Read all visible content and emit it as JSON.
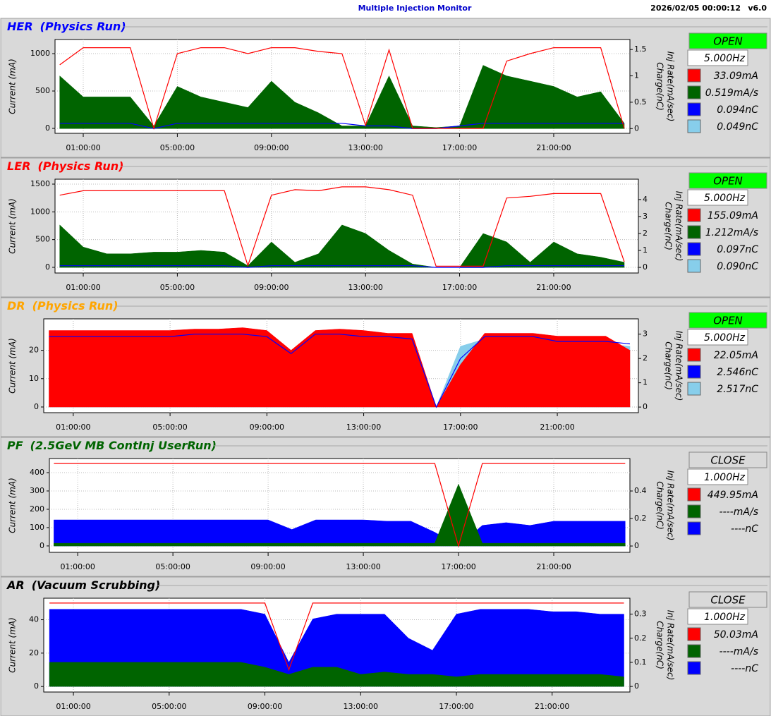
{
  "header": {
    "title": "Multiple Injection Monitor",
    "timestamp": "2026/02/05 00:00:12",
    "version": "v6.0"
  },
  "panels": [
    {
      "name": "HER",
      "mode": "(Physics Run)",
      "name_color": "#0000ff",
      "status": "OPEN",
      "status_color": "#00ff00",
      "rate": "5.000Hz",
      "readouts": [
        {
          "text": "33.09mA",
          "color": "#ff0000"
        },
        {
          "text": "0.519mA/s",
          "color": "#006400"
        },
        {
          "text": "0.094nC",
          "color": "#0000ff"
        },
        {
          "text": "0.049nC",
          "color": "#87ceeb"
        }
      ]
    },
    {
      "name": "LER",
      "mode": "(Physics Run)",
      "name_color": "#ff0000",
      "status": "OPEN",
      "status_color": "#00ff00",
      "rate": "5.000Hz",
      "readouts": [
        {
          "text": "155.09mA",
          "color": "#ff0000"
        },
        {
          "text": "1.212mA/s",
          "color": "#006400"
        },
        {
          "text": "0.097nC",
          "color": "#0000ff"
        },
        {
          "text": "0.090nC",
          "color": "#87ceeb"
        }
      ]
    },
    {
      "name": "DR",
      "mode": "(Physics Run)",
      "name_color": "#ffa500",
      "status": "OPEN",
      "status_color": "#00ff00",
      "rate": "5.000Hz",
      "readouts": [
        {
          "text": "22.05mA",
          "color": "#ff0000"
        },
        {
          "text": "2.546nC",
          "color": "#0000ff"
        },
        {
          "text": "2.517nC",
          "color": "#87ceeb"
        }
      ]
    },
    {
      "name": "PF",
      "mode": "(2.5GeV MB ContInj UserRun)",
      "name_color": "#006400",
      "status": "CLOSE",
      "status_color": "#d9d9d9",
      "rate": "1.000Hz",
      "readouts": [
        {
          "text": "449.95mA",
          "color": "#ff0000"
        },
        {
          "text": "----mA/s",
          "color": "#006400"
        },
        {
          "text": "----nC",
          "color": "#0000ff"
        }
      ]
    },
    {
      "name": "AR",
      "mode": "(Vacuum Scrubbing)",
      "name_color": "#000000",
      "status": "CLOSE",
      "status_color": "#d9d9d9",
      "rate": "1.000Hz",
      "readouts": [
        {
          "text": "50.03mA",
          "color": "#ff0000"
        },
        {
          "text": "----mA/s",
          "color": "#006400"
        },
        {
          "text": "----nC",
          "color": "#0000ff"
        }
      ]
    }
  ],
  "chart_data": [
    {
      "type": "line",
      "y_label": "Current (mA)",
      "y2_label": [
        "Charge(nC)",
        "Inj Rate(mA/sec)"
      ],
      "grid": true,
      "x": [
        0,
        1,
        2,
        3,
        4,
        5,
        6,
        7,
        8,
        9,
        10,
        11,
        12,
        13,
        14,
        15,
        16,
        17,
        18,
        19,
        20,
        21,
        22,
        23,
        24
      ],
      "xlim": [
        -0.2,
        24.24
      ],
      "xticks": [
        {
          "value": 1,
          "label": "01:00:00"
        },
        {
          "value": 5,
          "label": "05:00:00"
        },
        {
          "value": 9,
          "label": "09:00:00"
        },
        {
          "value": 13,
          "label": "13:00:00"
        },
        {
          "value": 17,
          "label": "17:00:00"
        },
        {
          "value": 21,
          "label": "21:00:00"
        }
      ],
      "ylim": [
        -66,
        1189
      ],
      "yticks": [
        0,
        500,
        1000
      ],
      "y2lim": [
        -0.09,
        1.69
      ],
      "y2ticks": [
        0,
        0.5,
        1,
        1.5
      ],
      "series": [
        {
          "color": "#006400",
          "style": "area",
          "axis": "y2",
          "values": [
            1.0,
            0.6,
            0.6,
            0.6,
            0.05,
            0.8,
            0.6,
            0.5,
            0.4,
            0.9,
            0.5,
            0.3,
            0.05,
            0.05,
            1.0,
            0.05,
            0.02,
            0.05,
            1.2,
            1.0,
            0.9,
            0.8,
            0.6,
            0.7,
            0.1
          ]
        },
        {
          "color": "#0000ff",
          "style": "line",
          "axis": "y2",
          "values": [
            0.1,
            0.1,
            0.1,
            0.1,
            0,
            0.1,
            0.1,
            0.1,
            0.1,
            0.1,
            0.1,
            0.1,
            0.1,
            0.05,
            0.05,
            0,
            0,
            0.05,
            0.1,
            0.1,
            0.1,
            0.1,
            0.1,
            0.1,
            0.1
          ]
        },
        {
          "color": "#ff0000",
          "style": "line",
          "axis": "y",
          "values": [
            850,
            1080,
            1080,
            1080,
            0,
            1000,
            1080,
            1080,
            1000,
            1080,
            1080,
            1030,
            1000,
            40,
            1050,
            0,
            0,
            0,
            0,
            900,
            1000,
            1080,
            1080,
            1080,
            0
          ]
        }
      ]
    },
    {
      "type": "line",
      "y_label": "Current (mA)",
      "y2_label": [
        "Charge(nC)",
        "Inj Rate(mA/sec)"
      ],
      "grid": true,
      "x": [
        0,
        1,
        2,
        3,
        4,
        5,
        6,
        7,
        8,
        9,
        10,
        11,
        12,
        13,
        14,
        15,
        16,
        17,
        18,
        19,
        20,
        21,
        22,
        23,
        24
      ],
      "xlim": [
        -0.2,
        24.6
      ],
      "xticks": [
        {
          "value": 1,
          "label": "01:00:00"
        },
        {
          "value": 5,
          "label": "05:00:00"
        },
        {
          "value": 9,
          "label": "09:00:00"
        },
        {
          "value": 13,
          "label": "13:00:00"
        },
        {
          "value": 17,
          "label": "17:00:00"
        },
        {
          "value": 21,
          "label": "21:00:00"
        }
      ],
      "ylim": [
        -102,
        1589
      ],
      "yticks": [
        0,
        500,
        1000,
        1500
      ],
      "y2lim": [
        -0.33,
        5.2
      ],
      "y2ticks": [
        0,
        1,
        2,
        3,
        4
      ],
      "series": [
        {
          "color": "#006400",
          "style": "area",
          "axis": "y2",
          "values": [
            2.5,
            1.2,
            0.8,
            0.8,
            0.9,
            0.9,
            1.0,
            0.9,
            0.1,
            1.5,
            0.3,
            0.8,
            2.5,
            2.0,
            1.0,
            0.2,
            0,
            0,
            2.0,
            1.5,
            0.3,
            1.5,
            0.8,
            0.6,
            0.3
          ]
        },
        {
          "color": "#0000ff",
          "style": "line",
          "axis": "y2",
          "values": [
            0.1,
            0.1,
            0.1,
            0.1,
            0.1,
            0.1,
            0.1,
            0.1,
            0,
            0.1,
            0.1,
            0.1,
            0.1,
            0.1,
            0.1,
            0.1,
            0,
            0,
            0,
            0.1,
            0.1,
            0.1,
            0.1,
            0.1,
            0.1
          ]
        },
        {
          "color": "#ff0000",
          "style": "line",
          "axis": "y",
          "values": [
            1300,
            1380,
            1380,
            1380,
            1380,
            1380,
            1380,
            1380,
            30,
            1300,
            1400,
            1380,
            1450,
            1450,
            1400,
            1300,
            20,
            20,
            20,
            1250,
            1280,
            1330,
            1330,
            1330,
            100
          ]
        }
      ]
    },
    {
      "type": "line",
      "y_label": "Current (mA)",
      "y2_label": [
        "Charge(nC)",
        "Inj Rate(mA/sec)"
      ],
      "grid": true,
      "x": [
        0,
        1,
        2,
        3,
        4,
        5,
        6,
        7,
        8,
        9,
        10,
        11,
        12,
        13,
        14,
        15,
        16,
        17,
        18,
        19,
        20,
        21,
        22,
        23,
        24
      ],
      "xlim": [
        -0.22,
        24.35
      ],
      "xticks": [
        {
          "value": 1,
          "label": "01:00:00"
        },
        {
          "value": 5,
          "label": "05:00:00"
        },
        {
          "value": 9,
          "label": "09:00:00"
        },
        {
          "value": 13,
          "label": "13:00:00"
        },
        {
          "value": 17,
          "label": "17:00:00"
        },
        {
          "value": 21,
          "label": "21:00:00"
        }
      ],
      "ylim": [
        -2,
        31.1
      ],
      "yticks": [
        0,
        10,
        20
      ],
      "y2lim": [
        -0.23,
        3.63
      ],
      "y2ticks": [
        0,
        1,
        2,
        3
      ],
      "series": [
        {
          "color": "#87ceeb",
          "style": "area",
          "axis": "y2",
          "values": [
            2.9,
            2.9,
            2.9,
            2.9,
            2.9,
            2.9,
            2.9,
            2.9,
            3.0,
            2.9,
            2.0,
            2.9,
            2.9,
            2.9,
            2.8,
            2.8,
            0,
            2.5,
            2.8,
            2.8,
            2.7,
            2.7,
            2.6,
            2.6,
            2.5
          ]
        },
        {
          "color": "#ff0000",
          "style": "area",
          "axis": "y",
          "values": [
            27,
            27,
            27,
            27,
            27,
            27,
            27.5,
            27.5,
            28,
            27,
            20,
            27,
            27.5,
            27,
            26,
            26,
            0,
            15,
            26,
            26,
            26,
            25,
            25,
            25,
            20
          ]
        },
        {
          "color": "#0000ff",
          "style": "line",
          "axis": "y2",
          "values": [
            2.9,
            2.9,
            2.9,
            2.9,
            2.9,
            2.9,
            3.0,
            3.0,
            3.0,
            2.9,
            2.2,
            3.0,
            3.0,
            2.9,
            2.9,
            2.8,
            0,
            2.0,
            2.9,
            2.9,
            2.9,
            2.7,
            2.7,
            2.7,
            2.6
          ]
        }
      ]
    },
    {
      "type": "line",
      "y_label": "Current (mA)",
      "y2_label": [
        "Charge(nC)",
        "Inj Rate(mA/sec)"
      ],
      "grid": true,
      "x": [
        0,
        1,
        2,
        3,
        4,
        5,
        6,
        7,
        8,
        9,
        10,
        11,
        12,
        13,
        14,
        15,
        16,
        17,
        18,
        19,
        20,
        21,
        22,
        23,
        24
      ],
      "xlim": [
        -0.19,
        24.2
      ],
      "xticks": [
        {
          "value": 1,
          "label": "01:00:00"
        },
        {
          "value": 5,
          "label": "05:00:00"
        },
        {
          "value": 9,
          "label": "09:00:00"
        },
        {
          "value": 13,
          "label": "13:00:00"
        },
        {
          "value": 17,
          "label": "17:00:00"
        },
        {
          "value": 21,
          "label": "21:00:00"
        }
      ],
      "ylim": [
        -35,
        477
      ],
      "yticks": [
        0,
        100,
        200,
        300,
        400
      ],
      "y2lim": [
        -0.046,
        0.636
      ],
      "y2ticks": [
        0,
        0.2,
        0.4
      ],
      "series": [
        {
          "color": "#0000ff",
          "style": "area",
          "axis": "y2",
          "values": [
            0.19,
            0.19,
            0.19,
            0.19,
            0.19,
            0.19,
            0.19,
            0.19,
            0.19,
            0.19,
            0.12,
            0.19,
            0.19,
            0.19,
            0.18,
            0.18,
            0.1,
            0,
            0.15,
            0.17,
            0.15,
            0.18,
            0.18,
            0.18,
            0.18
          ]
        },
        {
          "color": "#006400",
          "style": "area",
          "axis": "y2",
          "values": [
            0.02,
            0.02,
            0.02,
            0.02,
            0.02,
            0.02,
            0.02,
            0.02,
            0.02,
            0.02,
            0.02,
            0.02,
            0.02,
            0.02,
            0.02,
            0.02,
            0.02,
            0.45,
            0.02,
            0.02,
            0.02,
            0.02,
            0.02,
            0.02,
            0.02
          ]
        },
        {
          "color": "#ff0000",
          "style": "line",
          "axis": "y",
          "values": [
            450,
            450,
            450,
            450,
            450,
            450,
            450,
            450,
            450,
            450,
            450,
            450,
            450,
            450,
            450,
            450,
            450,
            0,
            450,
            450,
            450,
            450,
            450,
            450,
            450
          ]
        }
      ]
    },
    {
      "type": "line",
      "y_label": "Current (mA)",
      "y2_label": [
        "Charge(nC)",
        "Inj Rate(mA/sec)"
      ],
      "grid": true,
      "x": [
        0,
        1,
        2,
        3,
        4,
        5,
        6,
        7,
        8,
        9,
        10,
        11,
        12,
        13,
        14,
        15,
        16,
        17,
        18,
        19,
        20,
        21,
        22,
        23,
        24
      ],
      "xlim": [
        -0.24,
        24.25
      ],
      "xticks": [
        {
          "value": 1,
          "label": "01:00:00"
        },
        {
          "value": 5,
          "label": "05:00:00"
        },
        {
          "value": 9,
          "label": "09:00:00"
        },
        {
          "value": 13,
          "label": "13:00:00"
        },
        {
          "value": 17,
          "label": "17:00:00"
        },
        {
          "value": 21,
          "label": "21:00:00"
        }
      ],
      "ylim": [
        -3.3,
        52.9
      ],
      "yticks": [
        0,
        20,
        40
      ],
      "y2lim": [
        -0.023,
        0.366
      ],
      "y2ticks": [
        0,
        0.1,
        0.2,
        0.3
      ],
      "series": [
        {
          "color": "#0000ff",
          "style": "area",
          "axis": "y2",
          "values": [
            0.32,
            0.32,
            0.32,
            0.32,
            0.32,
            0.32,
            0.32,
            0.32,
            0.32,
            0.3,
            0.1,
            0.28,
            0.3,
            0.3,
            0.3,
            0.2,
            0.15,
            0.3,
            0.32,
            0.32,
            0.32,
            0.31,
            0.31,
            0.3,
            0.3
          ]
        },
        {
          "color": "#006400",
          "style": "area",
          "axis": "y2",
          "values": [
            0.1,
            0.1,
            0.1,
            0.1,
            0.1,
            0.1,
            0.1,
            0.1,
            0.1,
            0.08,
            0.05,
            0.08,
            0.08,
            0.05,
            0.06,
            0.05,
            0.05,
            0.04,
            0.05,
            0.05,
            0.05,
            0.05,
            0.05,
            0.05,
            0.04
          ]
        },
        {
          "color": "#ff0000",
          "style": "line",
          "axis": "y",
          "values": [
            50,
            50,
            50,
            50,
            50,
            50,
            50,
            50,
            50,
            50,
            10,
            50,
            50,
            50,
            50,
            50,
            50,
            50,
            50,
            50,
            50,
            50,
            50,
            50,
            50
          ]
        }
      ]
    }
  ]
}
